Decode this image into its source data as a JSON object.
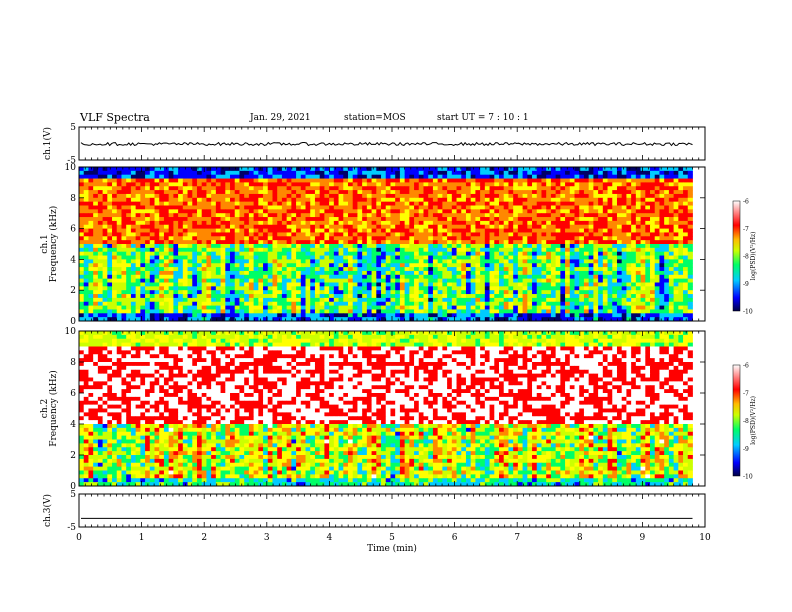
{
  "header": {
    "title": "VLF Spectra",
    "date": "Jan. 29, 2021",
    "station": "station=MOS",
    "start": "start  UT =   7 : 10 : 1"
  },
  "chart_data": [
    {
      "type": "line",
      "panel": "ch1-waveform",
      "ylabel": "ch.1(V)",
      "ylim": [
        -5,
        5
      ],
      "yticks": [
        "5",
        "-5"
      ],
      "xlim": [
        0,
        10
      ],
      "series": [
        {
          "values_min": -0.6,
          "values_max": 0.3
        }
      ]
    },
    {
      "type": "heatmap",
      "panel": "ch1-spectrogram",
      "ylabel_top": "ch.1",
      "ylabel": "Frequency (kHz)",
      "ylim": [
        0,
        10
      ],
      "yticks": [
        "0",
        "2",
        "4",
        "6",
        "8",
        "10"
      ],
      "xlim": [
        0,
        10
      ],
      "colorbar": {
        "label": "log(PSD)(V²/Hz)",
        "ticks": [
          "-6",
          "-7",
          "-8",
          "-9",
          "-10"
        ],
        "range": [
          -10,
          -6
        ]
      },
      "data_end_min": 9.8
    },
    {
      "type": "heatmap",
      "panel": "ch2-spectrogram",
      "ylabel_top": "ch.2",
      "ylabel": "Frequency (kHz)",
      "ylim": [
        0,
        10
      ],
      "yticks": [
        "0",
        "2",
        "4",
        "6",
        "8",
        "10"
      ],
      "xlim": [
        0,
        10
      ],
      "colorbar": {
        "label": "log(PSD)(V²/Hz)",
        "ticks": [
          "-6",
          "-7",
          "-8",
          "-9",
          "-10"
        ],
        "range": [
          -10,
          -6
        ]
      },
      "data_end_min": 9.8
    },
    {
      "type": "line",
      "panel": "ch3-waveform",
      "ylabel": "ch.3(V)",
      "ylim": [
        -5,
        5
      ],
      "yticks": [
        "5",
        "-5"
      ],
      "xlim": [
        0,
        10
      ],
      "xlabel": "Time (min)",
      "xticks": [
        "0",
        "1",
        "2",
        "3",
        "4",
        "5",
        "6",
        "7",
        "8",
        "9",
        "10"
      ],
      "series": [
        {
          "values_min": -2.4,
          "values_max": -2.4
        }
      ]
    }
  ],
  "colors": {
    "spectral_scale": [
      "#000066",
      "#0000ff",
      "#00ccff",
      "#00ff66",
      "#ccff00",
      "#ffff00",
      "#ff8800",
      "#ff0000",
      "#ffffff"
    ]
  }
}
